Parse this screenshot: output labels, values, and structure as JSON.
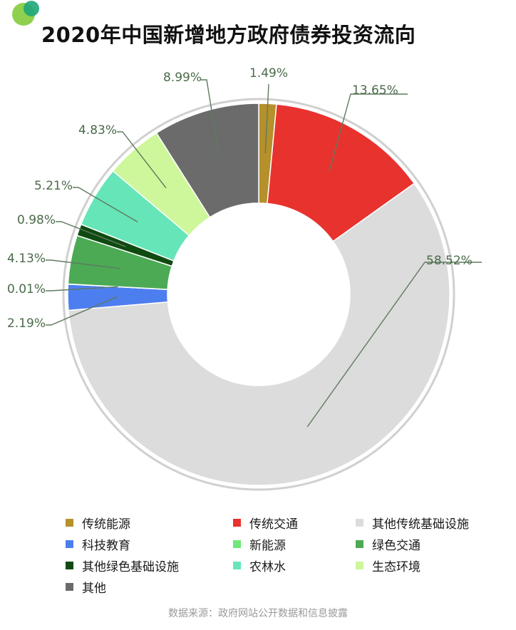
{
  "header": {
    "title": "2020年中国新增地方政府债券投资流向"
  },
  "chart_data": {
    "type": "pie",
    "title": "2020年中国新增地方政府债券投资流向",
    "start_category": "传统能源",
    "slices": [
      {
        "name": "传统能源",
        "value": 1.49,
        "label": "1.49%",
        "color": "#b5902b"
      },
      {
        "name": "传统交通",
        "value": 13.65,
        "label": "13.65%",
        "color": "#e8322e"
      },
      {
        "name": "其他传统基础设施",
        "value": 58.52,
        "label": "58.52%",
        "color": "#dcdcdc"
      },
      {
        "name": "科技教育",
        "value": 2.19,
        "label": "2.19%",
        "color": "#4d7ef0"
      },
      {
        "name": "新能源",
        "value": 0.01,
        "label": "0.01%",
        "color": "#6ee87a"
      },
      {
        "name": "绿色交通",
        "value": 4.13,
        "label": "4.13%",
        "color": "#4caa55"
      },
      {
        "name": "其他绿色基础设施",
        "value": 0.98,
        "label": "0.98%",
        "color": "#0f4a10"
      },
      {
        "name": "农林水",
        "value": 5.21,
        "label": "5.21%",
        "color": "#66e6b8"
      },
      {
        "name": "生态环境",
        "value": 4.83,
        "label": "4.83%",
        "color": "#cdf79a"
      },
      {
        "name": "其他",
        "value": 8.99,
        "label": "8.99%",
        "color": "#6b6b6b"
      }
    ],
    "label_color": "#4a6b4a",
    "legend_position": "bottom"
  },
  "legend": {
    "items": [
      {
        "label": "传统能源",
        "color": "#b5902b"
      },
      {
        "label": "传统交通",
        "color": "#e8322e"
      },
      {
        "label": "其他传统基础设施",
        "color": "#dcdcdc"
      },
      {
        "label": "科技教育",
        "color": "#4d7ef0"
      },
      {
        "label": "新能源",
        "color": "#6ee87a"
      },
      {
        "label": "绿色交通",
        "color": "#4caa55"
      },
      {
        "label": "其他绿色基础设施",
        "color": "#0f4a10"
      },
      {
        "label": "农林水",
        "color": "#66e6b8"
      },
      {
        "label": "生态环境",
        "color": "#cdf79a"
      },
      {
        "label": "其他",
        "color": "#6b6b6b"
      }
    ]
  },
  "footer": {
    "source": "数据来源：政府网站公开数据和信息披露"
  },
  "colors": {
    "logo_light": "#8fd14f",
    "logo_dark": "#1fa67a",
    "ring": "#d0d0d0"
  }
}
